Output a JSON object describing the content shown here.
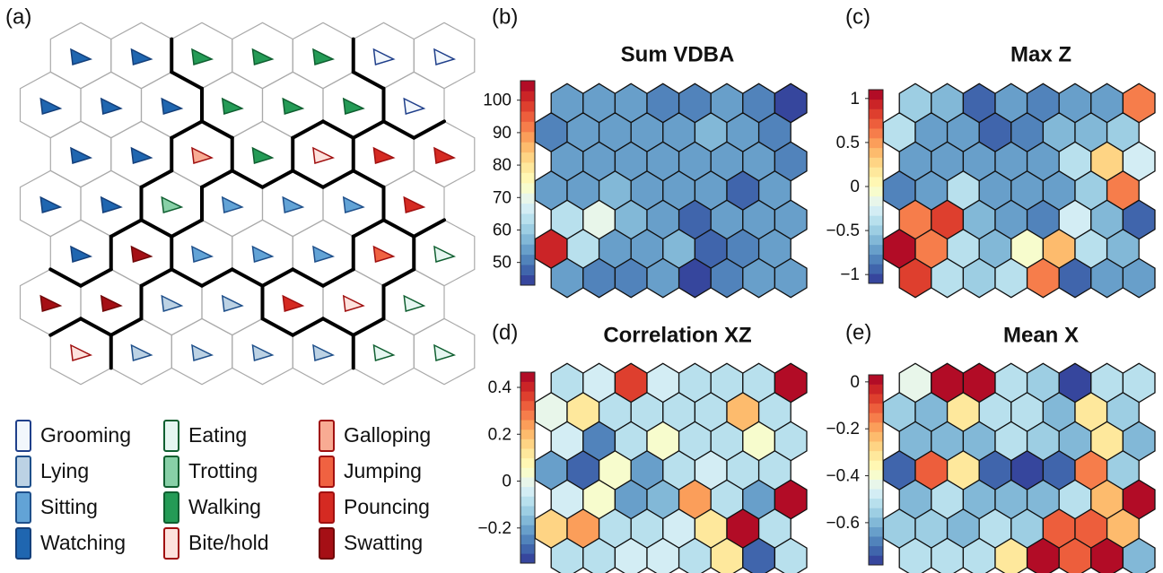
{
  "behavior_map": {
    "label": "(a)",
    "cells": [
      [
        "Watching",
        "Watching",
        "Walking",
        "Walking",
        "Walking",
        "Grooming",
        "Grooming"
      ],
      [
        "Watching",
        "Watching",
        "Watching",
        "Walking",
        "Walking",
        "Walking",
        "Grooming"
      ],
      [
        "Watching",
        "Watching",
        "Galloping",
        "Walking",
        "Bite/hold",
        "Pouncing",
        "Pouncing"
      ],
      [
        "Watching",
        "Watching",
        "Trotting",
        "Sitting",
        "Sitting",
        "Sitting",
        "Pouncing"
      ],
      [
        "Watching",
        "Swatting",
        "Sitting",
        "Sitting",
        "Sitting",
        "Jumping",
        "Eating"
      ],
      [
        "Swatting",
        "Swatting",
        "Lying",
        "Lying",
        "Pouncing",
        "Bite/hold",
        "Eating"
      ],
      [
        "Bite/hold",
        "Lying",
        "Lying",
        "Lying",
        "Lying",
        "Eating",
        "Eating"
      ]
    ],
    "clusters": [
      [
        1,
        1,
        2,
        2,
        2,
        3,
        3
      ],
      [
        1,
        1,
        1,
        2,
        2,
        2,
        3
      ],
      [
        1,
        1,
        5,
        2,
        6,
        7,
        7
      ],
      [
        1,
        1,
        5,
        4,
        4,
        4,
        7
      ],
      [
        1,
        8,
        4,
        4,
        4,
        9,
        10
      ],
      [
        8,
        8,
        11,
        11,
        9,
        9,
        10
      ],
      [
        12,
        11,
        11,
        11,
        11,
        10,
        10
      ]
    ],
    "legend": [
      {
        "name": "Grooming",
        "fill": "#f2f7fc",
        "stroke": "#1f3f8a"
      },
      {
        "name": "Lying",
        "fill": "#bcd2e4",
        "stroke": "#1e4f8a"
      },
      {
        "name": "Sitting",
        "fill": "#62a3d6",
        "stroke": "#1e4f8a"
      },
      {
        "name": "Watching",
        "fill": "#1f66b0",
        "stroke": "#143f7a"
      },
      {
        "name": "Eating",
        "fill": "#e6f6f1",
        "stroke": "#0f5f30"
      },
      {
        "name": "Trotting",
        "fill": "#88d0a7",
        "stroke": "#0f5f30"
      },
      {
        "name": "Walking",
        "fill": "#249b56",
        "stroke": "#0f5f30"
      },
      {
        "name": "Bite/hold",
        "fill": "#fde2dd",
        "stroke": "#a01010"
      },
      {
        "name": "Galloping",
        "fill": "#f8ab93",
        "stroke": "#a01010"
      },
      {
        "name": "Jumping",
        "fill": "#f06241",
        "stroke": "#a01010"
      },
      {
        "name": "Pouncing",
        "fill": "#d52a22",
        "stroke": "#a01010"
      },
      {
        "name": "Swatting",
        "fill": "#a50f15",
        "stroke": "#700808"
      }
    ]
  },
  "colormap": [
    "#313695",
    "#4575b4",
    "#74add1",
    "#abd9e9",
    "#e0f3f8",
    "#ffffbf",
    "#fee090",
    "#fdae61",
    "#f46d43",
    "#d73027",
    "#a50026"
  ],
  "heatmaps": [
    {
      "label": "(b)",
      "title": "Sum VDBA",
      "clim": [
        43,
        106
      ],
      "cticks": [
        50,
        60,
        70,
        80,
        90,
        100
      ],
      "values": [
        [
          55,
          55,
          55,
          52,
          52,
          53,
          52,
          45
        ],
        [
          52,
          55,
          55,
          55,
          55,
          57,
          55,
          52
        ],
        [
          55,
          55,
          55,
          55,
          55,
          55,
          55,
          52
        ],
        [
          53,
          53,
          57,
          55,
          55,
          55,
          48,
          55
        ],
        [
          62,
          70,
          57,
          55,
          48,
          55,
          55,
          55
        ],
        [
          100,
          62,
          55,
          55,
          57,
          48,
          52,
          55
        ],
        [
          55,
          52,
          52,
          55,
          45,
          52,
          55,
          55
        ]
      ]
    },
    {
      "label": "(c)",
      "title": "Max Z",
      "clim": [
        -1.1,
        1.1
      ],
      "cticks": [
        {
          "value": -1,
          "label": "−1"
        },
        {
          "value": -0.5,
          "label": "−0.5"
        },
        0,
        0.5,
        1
      ],
      "values": [
        [
          -0.5,
          -0.6,
          -0.9,
          -0.7,
          -0.8,
          -0.7,
          -0.7,
          0.6
        ],
        [
          -0.4,
          -0.7,
          -0.7,
          -0.9,
          -0.8,
          -0.6,
          -0.6,
          -0.5
        ],
        [
          -0.7,
          -0.7,
          -0.7,
          -0.7,
          -0.7,
          -0.4,
          0.3,
          -0.3
        ],
        [
          -0.8,
          -0.7,
          -0.4,
          -0.7,
          -0.7,
          -0.7,
          -0.5,
          0.6
        ],
        [
          0.6,
          0.8,
          -0.6,
          -0.7,
          -0.8,
          -0.3,
          -0.6,
          -0.9
        ],
        [
          1,
          0.6,
          -0.4,
          -0.6,
          -0.1,
          0.4,
          -0.4,
          -0.6
        ],
        [
          0.8,
          -0.4,
          -0.5,
          -0.4,
          0.6,
          -0.9,
          -0.7,
          -0.7
        ]
      ]
    },
    {
      "label": "(d)",
      "title": "Correlation XZ",
      "clim": [
        -0.35,
        0.465
      ],
      "cticks": [
        {
          "value": -0.2,
          "label": "−0.2"
        },
        0,
        0.2,
        0.4
      ],
      "values": [
        [
          -0.1,
          -0.05,
          0.35,
          -0.05,
          -0.1,
          -0.1,
          -0.1,
          0.45
        ],
        [
          0,
          0.1,
          -0.1,
          -0.1,
          -0.1,
          -0.1,
          0.2,
          -0.1
        ],
        [
          -0.05,
          -0.25,
          -0.1,
          0.05,
          -0.1,
          -0.1,
          0.05,
          -0.1
        ],
        [
          -0.2,
          -0.3,
          0.05,
          -0.2,
          -0.1,
          -0.05,
          -0.1,
          -0.1
        ],
        [
          -0.05,
          0.05,
          -0.2,
          -0.15,
          0.25,
          -0.1,
          -0.2,
          0.45
        ],
        [
          0.15,
          0.25,
          -0.1,
          -0.1,
          -0.05,
          0.1,
          0.45,
          -0.1
        ],
        [
          -0.1,
          -0.1,
          -0.05,
          -0.05,
          -0.1,
          0.1,
          -0.3,
          -0.1
        ]
      ]
    },
    {
      "label": "(e)",
      "title": "Mean X",
      "clim": [
        -0.78,
        0.03
      ],
      "cticks": [
        {
          "value": -0.6,
          "label": "−0.6"
        },
        {
          "value": -0.4,
          "label": "−0.4"
        },
        {
          "value": -0.2,
          "label": "−0.2"
        },
        0
      ],
      "values": [
        [
          -0.45,
          0,
          0,
          -0.5,
          -0.55,
          -0.75,
          -0.5,
          -0.5
        ],
        [
          -0.55,
          -0.6,
          -0.3,
          -0.5,
          -0.5,
          -0.6,
          -0.3,
          -0.55
        ],
        [
          -0.6,
          -0.6,
          -0.6,
          -0.5,
          -0.55,
          -0.6,
          -0.3,
          -0.6
        ],
        [
          -0.7,
          -0.1,
          -0.3,
          -0.7,
          -0.75,
          -0.7,
          -0.15,
          -0.55
        ],
        [
          -0.6,
          -0.5,
          -0.6,
          -0.6,
          -0.6,
          -0.5,
          -0.25,
          0
        ],
        [
          -0.55,
          -0.55,
          -0.6,
          -0.5,
          -0.55,
          -0.1,
          -0.1,
          -0.25
        ],
        [
          -0.5,
          -0.5,
          -0.5,
          -0.3,
          0,
          -0.1,
          0,
          -0.6
        ]
      ]
    }
  ]
}
